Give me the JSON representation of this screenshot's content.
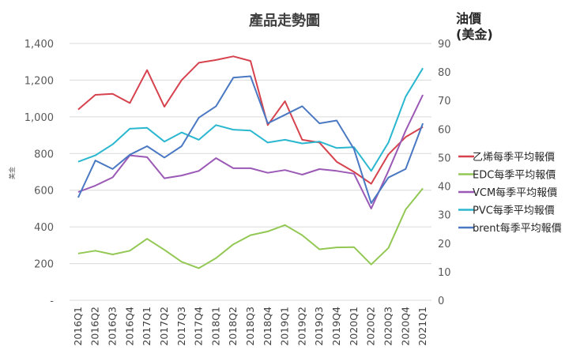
{
  "chart_data": {
    "type": "line",
    "title": "產品走勢圖",
    "ylabel": "美金",
    "y2label_line1": "油價",
    "y2label_line2": "(美金)",
    "ylim": [
      0,
      1400
    ],
    "y2lim": [
      0,
      90
    ],
    "yticks": [
      "-",
      "200",
      "400",
      "600",
      "800",
      "1,000",
      "1,200",
      "1,400"
    ],
    "y2ticks": [
      "0",
      "10",
      "20",
      "30",
      "40",
      "50",
      "60",
      "70",
      "80",
      "90"
    ],
    "categories": [
      "2016Q1",
      "2016Q2",
      "2016Q3",
      "2016Q4",
      "2017Q1",
      "2017Q2",
      "2017Q3",
      "2017Q4",
      "2018Q1",
      "2018Q2",
      "2018Q3",
      "2018Q4",
      "2019Q1",
      "2019Q2",
      "2019Q3",
      "2019Q4",
      "2020Q1",
      "2020Q2",
      "2020Q3",
      "2020Q4",
      "2021Q1"
    ],
    "grid": true,
    "legend_position": "right",
    "series": [
      {
        "name": "乙烯每季平均報價",
        "color": "#d6424d",
        "axis": "left",
        "values": [
          1040,
          1120,
          1125,
          1075,
          1255,
          1055,
          1200,
          1295,
          1310,
          1330,
          1305,
          955,
          1085,
          875,
          860,
          755,
          700,
          635,
          795,
          890,
          945
        ]
      },
      {
        "name": "EDC每季平均報價",
        "color": "#92c853",
        "axis": "left",
        "values": [
          255,
          270,
          250,
          270,
          335,
          275,
          210,
          175,
          230,
          305,
          355,
          375,
          410,
          355,
          278,
          288,
          290,
          195,
          285,
          495,
          610
        ]
      },
      {
        "name": "VCM每季平均報價",
        "color": "#9b59b6",
        "axis": "left",
        "values": [
          590,
          625,
          670,
          790,
          780,
          665,
          680,
          705,
          775,
          720,
          720,
          695,
          710,
          685,
          715,
          705,
          690,
          500,
          705,
          925,
          1120
        ]
      },
      {
        "name": "PVC每季平均報價",
        "color": "#2ab7cf",
        "axis": "left",
        "values": [
          755,
          790,
          850,
          935,
          940,
          865,
          915,
          875,
          955,
          930,
          925,
          860,
          875,
          855,
          865,
          830,
          835,
          705,
          860,
          1110,
          1265
        ]
      },
      {
        "name": "brent每季平均報價",
        "color": "#4a78c2",
        "axis": "right",
        "values": [
          36,
          49,
          46,
          51,
          54,
          50,
          54,
          64,
          68,
          78,
          78.5,
          62,
          65,
          68,
          62,
          63,
          53,
          34,
          43,
          46,
          62
        ]
      }
    ]
  }
}
